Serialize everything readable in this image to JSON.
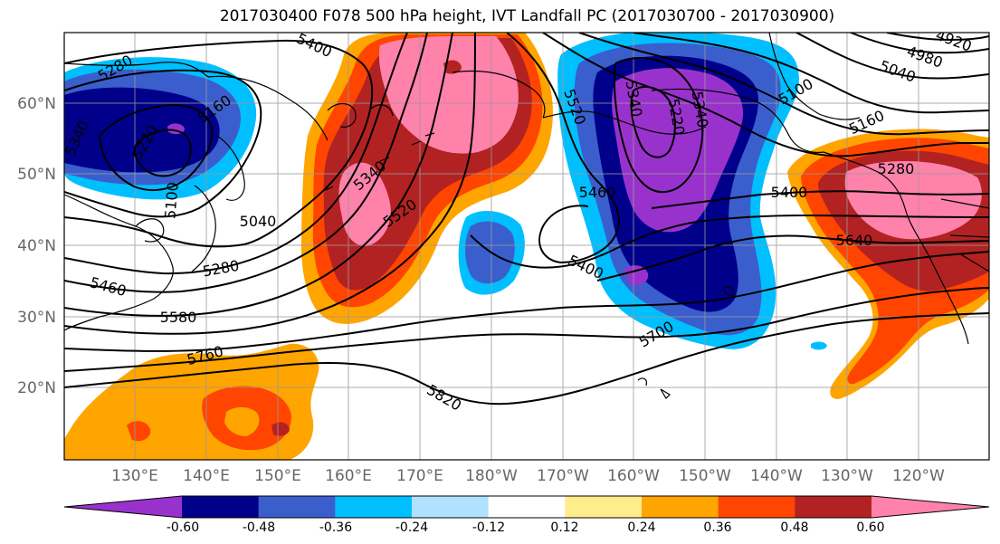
{
  "title": "2017030400 F078 500 hPa height, IVT Landfall PC (2017030700 - 2017030900)",
  "lat_labels": [
    "60°N",
    "50°N",
    "40°N",
    "30°N",
    "20°N"
  ],
  "lon_labels": [
    "130°E",
    "140°E",
    "150°E",
    "160°E",
    "170°E",
    "180°W",
    "170°W",
    "160°W",
    "150°W",
    "140°W",
    "130°W",
    "120°W"
  ],
  "colorbar": {
    "colors": [
      "#9932cc",
      "#00008b",
      "#3a5fcd",
      "#00bfff",
      "#b0e2ff",
      "#ffffff",
      "#ffec8b",
      "#ffa500",
      "#ff4500",
      "#b22222",
      "#ff82ab"
    ],
    "tick_labels": [
      "-0.60",
      "-0.48",
      "-0.36",
      "-0.24",
      "-0.12",
      "0.12",
      "0.24",
      "0.36",
      "0.48",
      "0.60"
    ]
  },
  "contour_labels": [
    "5280",
    "5400",
    "4920",
    "4980",
    "5040",
    "5100",
    "5160",
    "5220",
    "5340",
    "5160",
    "5040",
    "5100",
    "5220",
    "5340",
    "5520",
    "5460",
    "5400",
    "5280",
    "5640",
    "5460",
    "5580",
    "5760",
    "5700",
    "5820",
    "5400",
    "5340",
    "5520",
    "5280",
    "5340"
  ],
  "map_colors": {
    "purple": "#9932cc",
    "navy": "#00008b",
    "blue": "#3a5fcd",
    "sky": "#00bfff",
    "light": "#b0e2ff",
    "yellow": "#ffec8b",
    "orange": "#ffa500",
    "red": "#ff4500",
    "darkred": "#b22222",
    "pink": "#ff82ab"
  }
}
